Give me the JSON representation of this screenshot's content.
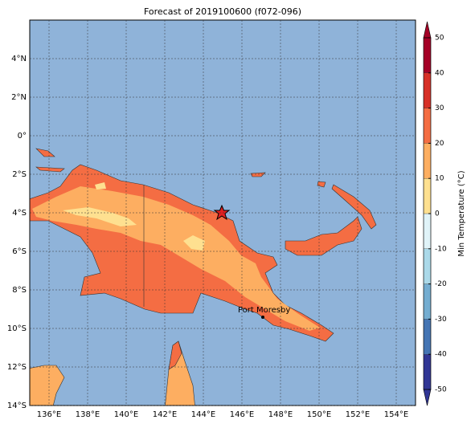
{
  "map": {
    "title": "Forecast of 2019100600 (f072-096)",
    "xlim": [
      135,
      155
    ],
    "ylim": [
      -14,
      6
    ],
    "xticks": [
      {
        "value": 136,
        "label": "136°E"
      },
      {
        "value": 138,
        "label": "138°E"
      },
      {
        "value": 140,
        "label": "140°E"
      },
      {
        "value": 142,
        "label": "142°E"
      },
      {
        "value": 144,
        "label": "144°E"
      },
      {
        "value": 146,
        "label": "146°E"
      },
      {
        "value": 148,
        "label": "148°E"
      },
      {
        "value": 150,
        "label": "150°E"
      },
      {
        "value": 152,
        "label": "152°E"
      },
      {
        "value": 154,
        "label": "154°E"
      }
    ],
    "yticks": [
      {
        "value": 4,
        "label": "4°N"
      },
      {
        "value": 2,
        "label": "2°N"
      },
      {
        "value": 0,
        "label": "0°"
      },
      {
        "value": -2,
        "label": "2°S"
      },
      {
        "value": -4,
        "label": "4°S"
      },
      {
        "value": -6,
        "label": "6°S"
      },
      {
        "value": -8,
        "label": "8°S"
      },
      {
        "value": -10,
        "label": "10°S"
      },
      {
        "value": -12,
        "label": "12°S"
      },
      {
        "value": -14,
        "label": "14°S"
      }
    ],
    "grid": true,
    "city": "Port Moresby",
    "colorbar": {
      "label": "Min Temperature (°C)",
      "lim": [
        -50,
        50
      ],
      "ticks": [
        -50,
        -40,
        -30,
        -20,
        -10,
        0,
        10,
        20,
        30,
        40,
        50
      ],
      "colors": [
        "#313695",
        "#4575b4",
        "#74add1",
        "#abd9e9",
        "#e0f3f8",
        "#fee090",
        "#fdae61",
        "#f46d43",
        "#d73027",
        "#a50026"
      ]
    }
  }
}
